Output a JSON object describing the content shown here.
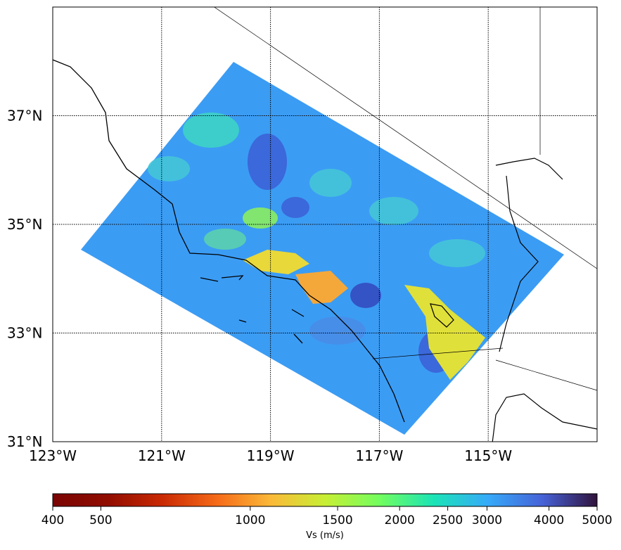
{
  "chart_data": {
    "type": "map",
    "xlim": [
      -123,
      -113
    ],
    "ylim": [
      31,
      39
    ],
    "xticks": [
      {
        "value": -123,
        "label": "123°W"
      },
      {
        "value": -121,
        "label": "121°W"
      },
      {
        "value": -119,
        "label": "119°W"
      },
      {
        "value": -117,
        "label": "117°W"
      },
      {
        "value": -115,
        "label": "115°W"
      }
    ],
    "yticks": [
      {
        "value": 31,
        "label": "31°N"
      },
      {
        "value": 33,
        "label": "33°N"
      },
      {
        "value": 35,
        "label": "35°N"
      },
      {
        "value": 37,
        "label": "37°N"
      }
    ],
    "grid": true,
    "colorbar": {
      "label": "Vs (m/s)",
      "lim": [
        400,
        5000
      ],
      "scale": "log",
      "ticks": [
        400,
        500,
        1000,
        1500,
        2000,
        2500,
        3000,
        4000,
        5000
      ],
      "colors": [
        "#7a0403",
        "#900c00",
        "#c92903",
        "#f56918",
        "#fbb938",
        "#c7ef34",
        "#72fe5e",
        "#1ae4b6",
        "#36aaf9",
        "#4662d7",
        "#30123b"
      ]
    }
  }
}
